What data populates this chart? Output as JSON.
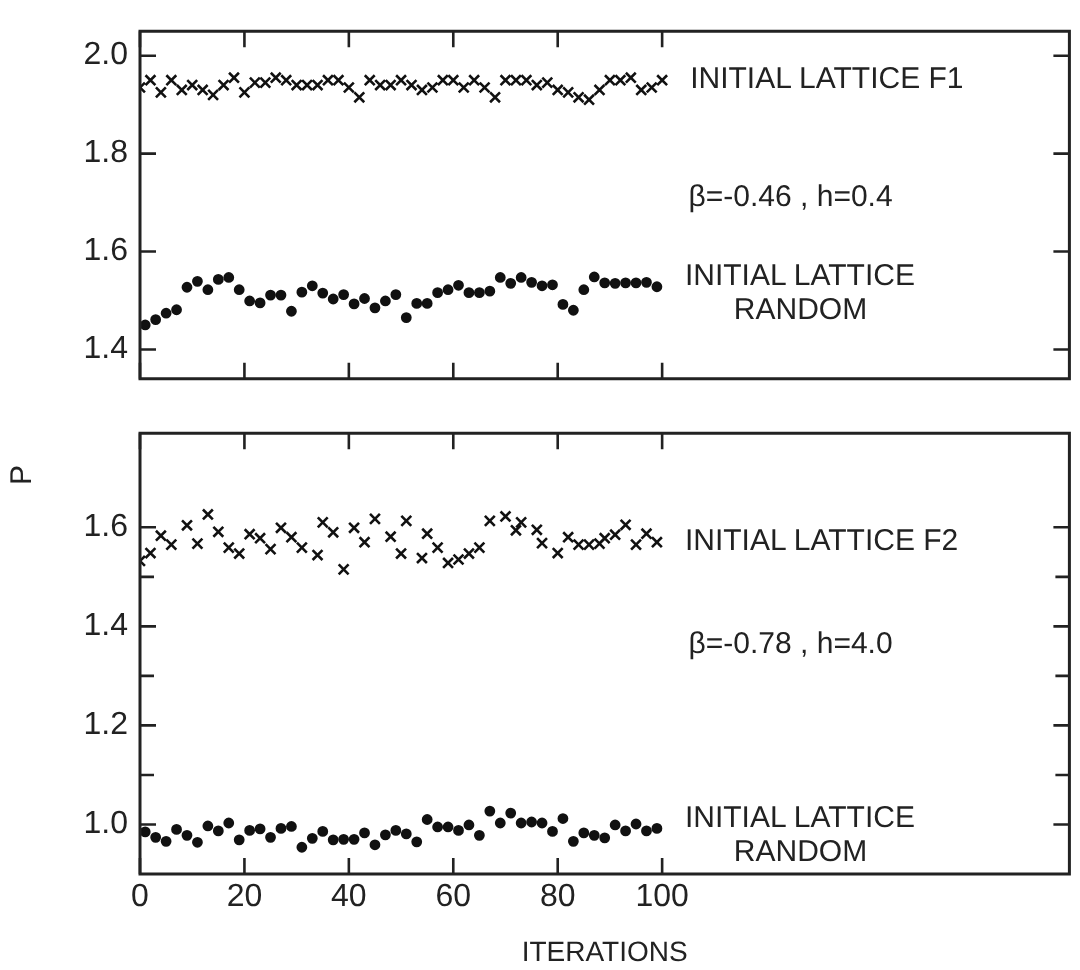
{
  "chart_data": [
    {
      "type": "scatter",
      "ylabel": "P",
      "annotations": [
        "β=-0.46 , h=0.4"
      ],
      "xlim": [
        0,
        178
      ],
      "xticks": [
        0,
        20,
        40,
        60,
        80,
        100
      ],
      "ylim": [
        1.34,
        2.05
      ],
      "yticks": [
        1.4,
        1.6,
        1.8,
        {
          "value": 2,
          "label": "2.0"
        }
      ],
      "tick_labels": "y",
      "series": [
        {
          "name": "INITIAL LATTICE F1",
          "color": "#111111",
          "marker": "cross",
          "x": [
            0,
            2,
            4,
            6,
            8,
            10,
            12,
            14,
            16,
            18,
            20,
            22,
            24,
            26,
            28,
            30,
            32,
            34,
            36,
            38,
            40,
            42,
            44,
            46,
            48,
            50,
            52,
            54,
            56,
            58,
            60,
            62,
            64,
            66,
            68,
            70,
            72,
            74,
            76,
            78,
            80,
            82,
            84,
            86,
            88,
            90,
            92,
            94,
            96,
            98,
            100
          ],
          "values": [
            1.935,
            1.95,
            1.925,
            1.95,
            1.93,
            1.94,
            1.93,
            1.92,
            1.94,
            1.955,
            1.925,
            1.945,
            1.945,
            1.955,
            1.95,
            1.94,
            1.94,
            1.94,
            1.95,
            1.95,
            1.935,
            1.915,
            1.95,
            1.94,
            1.94,
            1.95,
            1.94,
            1.93,
            1.935,
            1.95,
            1.95,
            1.935,
            1.95,
            1.935,
            1.915,
            1.95,
            1.95,
            1.95,
            1.94,
            1.945,
            1.93,
            1.925,
            1.915,
            1.91,
            1.93,
            1.95,
            1.95,
            1.955,
            1.93,
            1.935,
            1.95
          ]
        },
        {
          "name": "INITIAL LATTICE RANDOM",
          "color": "#111111",
          "marker": "circle",
          "x": [
            1,
            3,
            5,
            7,
            9,
            11,
            13,
            15,
            17,
            19,
            21,
            23,
            25,
            27,
            29,
            31,
            33,
            35,
            37,
            39,
            41,
            43,
            45,
            47,
            49,
            51,
            53,
            55,
            57,
            59,
            61,
            63,
            65,
            67,
            69,
            71,
            73,
            75,
            77,
            79,
            81,
            83,
            85,
            87,
            89,
            91,
            93,
            95,
            97,
            99
          ],
          "values": [
            1.45,
            1.461,
            1.474,
            1.481,
            1.527,
            1.539,
            1.522,
            1.543,
            1.547,
            1.522,
            1.499,
            1.495,
            1.511,
            1.511,
            1.478,
            1.517,
            1.53,
            1.515,
            1.503,
            1.512,
            1.493,
            1.504,
            1.485,
            1.499,
            1.512,
            1.465,
            1.494,
            1.494,
            1.516,
            1.522,
            1.531,
            1.516,
            1.516,
            1.519,
            1.547,
            1.535,
            1.547,
            1.537,
            1.53,
            1.532,
            1.492,
            1.48,
            1.522,
            1.548,
            1.536,
            1.535,
            1.536,
            1.536,
            1.537,
            1.528
          ]
        }
      ]
    },
    {
      "type": "scatter",
      "xlabel": "ITERATIONS",
      "annotations": [
        "β=-0.78 , h=4.0"
      ],
      "xlim": [
        0,
        178
      ],
      "xticks": [
        0,
        20,
        40,
        60,
        80,
        100
      ],
      "ylim": [
        0.9,
        1.79
      ],
      "yticks": [
        {
          "value": 1,
          "label": "1.0"
        },
        {
          "value": 1.1,
          "label": null
        },
        1.2,
        {
          "value": 1.3,
          "label": null
        },
        1.4,
        {
          "value": 1.5,
          "label": null
        },
        1.6
      ],
      "series": [
        {
          "name": "INITIAL LATTICE F2",
          "color": "#111111",
          "marker": "cross",
          "x": [
            0,
            2,
            4,
            6,
            9,
            11,
            13,
            15,
            17,
            19,
            21,
            23,
            25,
            27,
            29,
            31,
            34,
            35,
            37,
            39,
            41,
            43,
            45,
            48,
            50,
            51,
            54,
            55,
            57,
            59,
            61,
            63,
            65,
            67,
            70,
            72,
            73,
            76,
            77,
            80,
            82,
            84,
            86,
            88,
            89,
            91,
            93,
            95,
            97,
            99
          ],
          "values": [
            1.532,
            1.548,
            1.583,
            1.565,
            1.604,
            1.567,
            1.626,
            1.591,
            1.559,
            1.547,
            1.586,
            1.578,
            1.556,
            1.599,
            1.58,
            1.559,
            1.544,
            1.61,
            1.59,
            1.515,
            1.599,
            1.57,
            1.617,
            1.581,
            1.547,
            1.613,
            1.538,
            1.587,
            1.559,
            1.528,
            1.535,
            1.547,
            1.559,
            1.613,
            1.622,
            1.594,
            1.61,
            1.595,
            1.568,
            1.548,
            1.58,
            1.565,
            1.565,
            1.567,
            1.578,
            1.585,
            1.605,
            1.565,
            1.587,
            1.57
          ]
        },
        {
          "name": "INITIAL LATTICE RANDOM",
          "color": "#111111",
          "marker": "circle",
          "x": [
            1,
            3,
            5,
            7,
            9,
            11,
            13,
            15,
            17,
            19,
            21,
            23,
            25,
            27,
            29,
            31,
            33,
            35,
            37,
            39,
            41,
            43,
            45,
            47,
            49,
            51,
            53,
            55,
            57,
            59,
            61,
            63,
            65,
            67,
            69,
            71,
            73,
            75,
            77,
            79,
            81,
            83,
            85,
            87,
            89,
            91,
            93,
            95,
            97,
            99
          ],
          "values": [
            0.985,
            0.974,
            0.966,
            0.99,
            0.978,
            0.964,
            0.997,
            0.987,
            1.003,
            0.969,
            0.988,
            0.991,
            0.974,
            0.992,
            0.996,
            0.954,
            0.972,
            0.986,
            0.969,
            0.97,
            0.97,
            0.983,
            0.959,
            0.979,
            0.988,
            0.981,
            0.965,
            1.01,
            0.995,
            0.995,
            0.988,
            0.999,
            0.978,
            1.027,
            1.003,
            1.023,
            1.003,
            1.005,
            1.003,
            0.986,
            1.012,
            0.966,
            0.983,
            0.978,
            0.973,
            0.999,
            0.987,
            1.001,
            0.987,
            0.992
          ]
        }
      ]
    }
  ]
}
